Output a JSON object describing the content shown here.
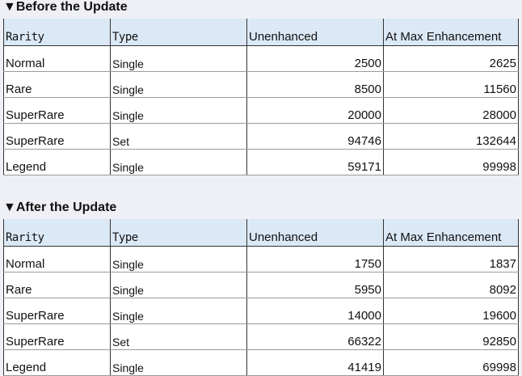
{
  "columns": [
    "Rarity",
    "Type",
    "Unenhanced",
    "At Max Enhancement"
  ],
  "sections": [
    {
      "title": "▼Before the Update",
      "rows": [
        [
          "Normal",
          "Single",
          "2500",
          "2625"
        ],
        [
          "Rare",
          "Single",
          "8500",
          "11560"
        ],
        [
          "SuperRare",
          "Single",
          "20000",
          "28000"
        ],
        [
          "SuperRare",
          "Set",
          "94746",
          "132644"
        ],
        [
          "Legend",
          "Single",
          "59171",
          "99998"
        ]
      ]
    },
    {
      "title": "▼After the Update",
      "rows": [
        [
          "Normal",
          "Single",
          "1750",
          "1837"
        ],
        [
          "Rare",
          "Single",
          "5950",
          "8092"
        ],
        [
          "SuperRare",
          "Single",
          "14000",
          "19600"
        ],
        [
          "SuperRare",
          "Set",
          "66322",
          "92850"
        ],
        [
          "Legend",
          "Single",
          "41419",
          "69998"
        ]
      ]
    }
  ]
}
